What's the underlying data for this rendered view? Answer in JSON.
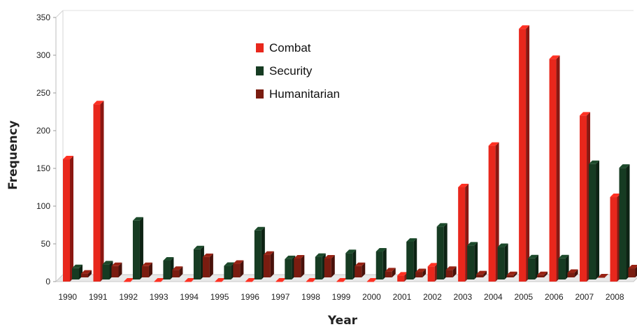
{
  "chart_data": {
    "type": "bar",
    "title": "",
    "xlabel": "Year",
    "ylabel": "Frequency",
    "ylim": [
      0,
      350
    ],
    "yticks": [
      0,
      50,
      100,
      150,
      200,
      250,
      300,
      350
    ],
    "grid": false,
    "legend_position": "top-center",
    "categories": [
      "1990",
      "1991",
      "1992",
      "1993",
      "1994",
      "1995",
      "1996",
      "1997",
      "1998",
      "1999",
      "2000",
      "2001",
      "2002",
      "2003",
      "2004",
      "2005",
      "2006",
      "2007",
      "2008"
    ],
    "series": [
      {
        "name": "Combat",
        "color": "#e8271c",
        "values": [
          162,
          235,
          0,
          0,
          0,
          0,
          0,
          0,
          0,
          0,
          0,
          8,
          20,
          125,
          180,
          335,
          295,
          220,
          112
        ]
      },
      {
        "name": "Security",
        "color": "#163b22",
        "values": [
          15,
          20,
          78,
          25,
          40,
          18,
          65,
          27,
          30,
          35,
          37,
          50,
          70,
          45,
          43,
          28,
          28,
          153,
          148
        ]
      },
      {
        "name": "Humanitarian",
        "color": "#7a1c10",
        "values": [
          5,
          15,
          15,
          10,
          27,
          18,
          30,
          25,
          25,
          15,
          8,
          7,
          10,
          4,
          3,
          3,
          6,
          0,
          12
        ]
      }
    ]
  }
}
